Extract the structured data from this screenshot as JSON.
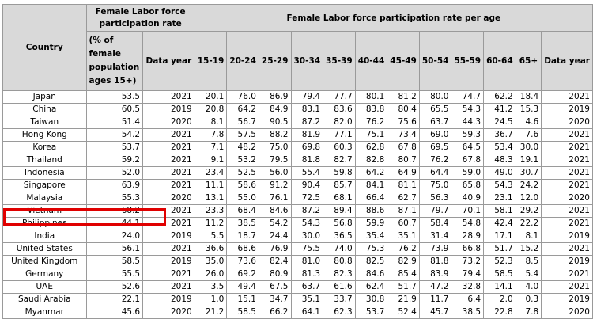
{
  "headers": {
    "country": "Country",
    "rate_group": "Female Labor force participation rate",
    "rate": "(% of female population ages 15+)",
    "rate_year": "Data year",
    "age_group": "Female Labor force participation rate per age",
    "ages": [
      "15-19",
      "20-24",
      "25-29",
      "30-34",
      "35-39",
      "40-44",
      "45-49",
      "50-54",
      "55-59",
      "60-64",
      "65+"
    ],
    "age_year": "Data year"
  },
  "rows": [
    [
      "Japan",
      "53.5",
      "2021",
      "20.1",
      "76.0",
      "86.9",
      "79.4",
      "77.7",
      "80.1",
      "81.2",
      "80.0",
      "74.7",
      "62.2",
      "18.4",
      "2021"
    ],
    [
      "China",
      "60.5",
      "2019",
      "20.8",
      "64.2",
      "84.9",
      "83.1",
      "83.6",
      "83.8",
      "80.4",
      "65.5",
      "54.3",
      "41.2",
      "15.3",
      "2019"
    ],
    [
      "Taiwan",
      "51.4",
      "2020",
      "8.1",
      "56.7",
      "90.5",
      "87.2",
      "82.0",
      "76.2",
      "75.6",
      "63.7",
      "44.3",
      "24.5",
      "4.6",
      "2020"
    ],
    [
      "Hong Kong",
      "54.2",
      "2021",
      "7.8",
      "57.5",
      "88.2",
      "81.9",
      "77.1",
      "75.1",
      "73.4",
      "69.0",
      "59.3",
      "36.7",
      "7.6",
      "2021"
    ],
    [
      "Korea",
      "53.7",
      "2021",
      "7.1",
      "48.2",
      "75.0",
      "69.8",
      "60.3",
      "62.8",
      "67.8",
      "69.5",
      "64.5",
      "53.4",
      "30.0",
      "2021"
    ],
    [
      "Thailand",
      "59.2",
      "2021",
      "9.1",
      "53.2",
      "79.5",
      "81.8",
      "82.7",
      "82.8",
      "80.7",
      "76.2",
      "67.8",
      "48.3",
      "19.1",
      "2021"
    ],
    [
      "Indonesia",
      "52.0",
      "2021",
      "23.4",
      "52.5",
      "56.0",
      "55.4",
      "59.8",
      "64.2",
      "64.9",
      "64.4",
      "59.0",
      "49.0",
      "30.7",
      "2021"
    ],
    [
      "Singapore",
      "63.9",
      "2021",
      "11.1",
      "58.6",
      "91.2",
      "90.4",
      "85.7",
      "84.1",
      "81.1",
      "75.0",
      "65.8",
      "54.3",
      "24.2",
      "2021"
    ],
    [
      "Malaysia",
      "55.3",
      "2020",
      "13.1",
      "55.0",
      "76.1",
      "72.5",
      "68.1",
      "66.4",
      "62.7",
      "56.3",
      "40.9",
      "23.1",
      "12.0",
      "2020"
    ],
    [
      "Vietnam",
      "68.2",
      "2021",
      "23.3",
      "68.4",
      "84.6",
      "87.2",
      "89.4",
      "88.6",
      "87.1",
      "79.7",
      "70.1",
      "58.1",
      "29.2",
      "2021"
    ],
    [
      "Philippines",
      "44.1",
      "2021",
      "11.2",
      "38.5",
      "54.2",
      "54.3",
      "56.8",
      "59.9",
      "60.7",
      "58.4",
      "54.8",
      "42.4",
      "22.2",
      "2021"
    ],
    [
      "India",
      "24.0",
      "2019",
      "5.5",
      "18.7",
      "24.4",
      "30.0",
      "36.5",
      "35.4",
      "35.1",
      "31.4",
      "28.9",
      "17.1",
      "8.1",
      "2019"
    ],
    [
      "United States",
      "56.1",
      "2021",
      "36.6",
      "68.6",
      "76.9",
      "75.5",
      "74.0",
      "75.3",
      "76.2",
      "73.9",
      "66.8",
      "51.7",
      "15.2",
      "2021"
    ],
    [
      "United Kingdom",
      "58.5",
      "2019",
      "35.0",
      "73.6",
      "82.4",
      "81.0",
      "80.8",
      "82.5",
      "82.9",
      "81.8",
      "73.2",
      "52.3",
      "8.5",
      "2019"
    ],
    [
      "Germany",
      "55.5",
      "2021",
      "26.0",
      "69.2",
      "80.9",
      "81.3",
      "82.3",
      "84.6",
      "85.4",
      "83.9",
      "79.4",
      "58.5",
      "5.4",
      "2021"
    ],
    [
      "UAE",
      "52.6",
      "2021",
      "3.5",
      "49.4",
      "67.5",
      "63.7",
      "61.6",
      "62.4",
      "51.7",
      "47.2",
      "32.8",
      "14.1",
      "4.0",
      "2021"
    ],
    [
      "Saudi Arabia",
      "22.1",
      "2019",
      "1.0",
      "15.1",
      "34.7",
      "35.1",
      "33.7",
      "30.8",
      "21.9",
      "11.7",
      "6.4",
      "2.0",
      "0.3",
      "2019"
    ],
    [
      "Myanmar",
      "45.6",
      "2020",
      "21.2",
      "58.5",
      "66.2",
      "64.1",
      "62.3",
      "53.7",
      "52.4",
      "45.7",
      "38.5",
      "22.8",
      "7.8",
      "2020"
    ]
  ]
}
